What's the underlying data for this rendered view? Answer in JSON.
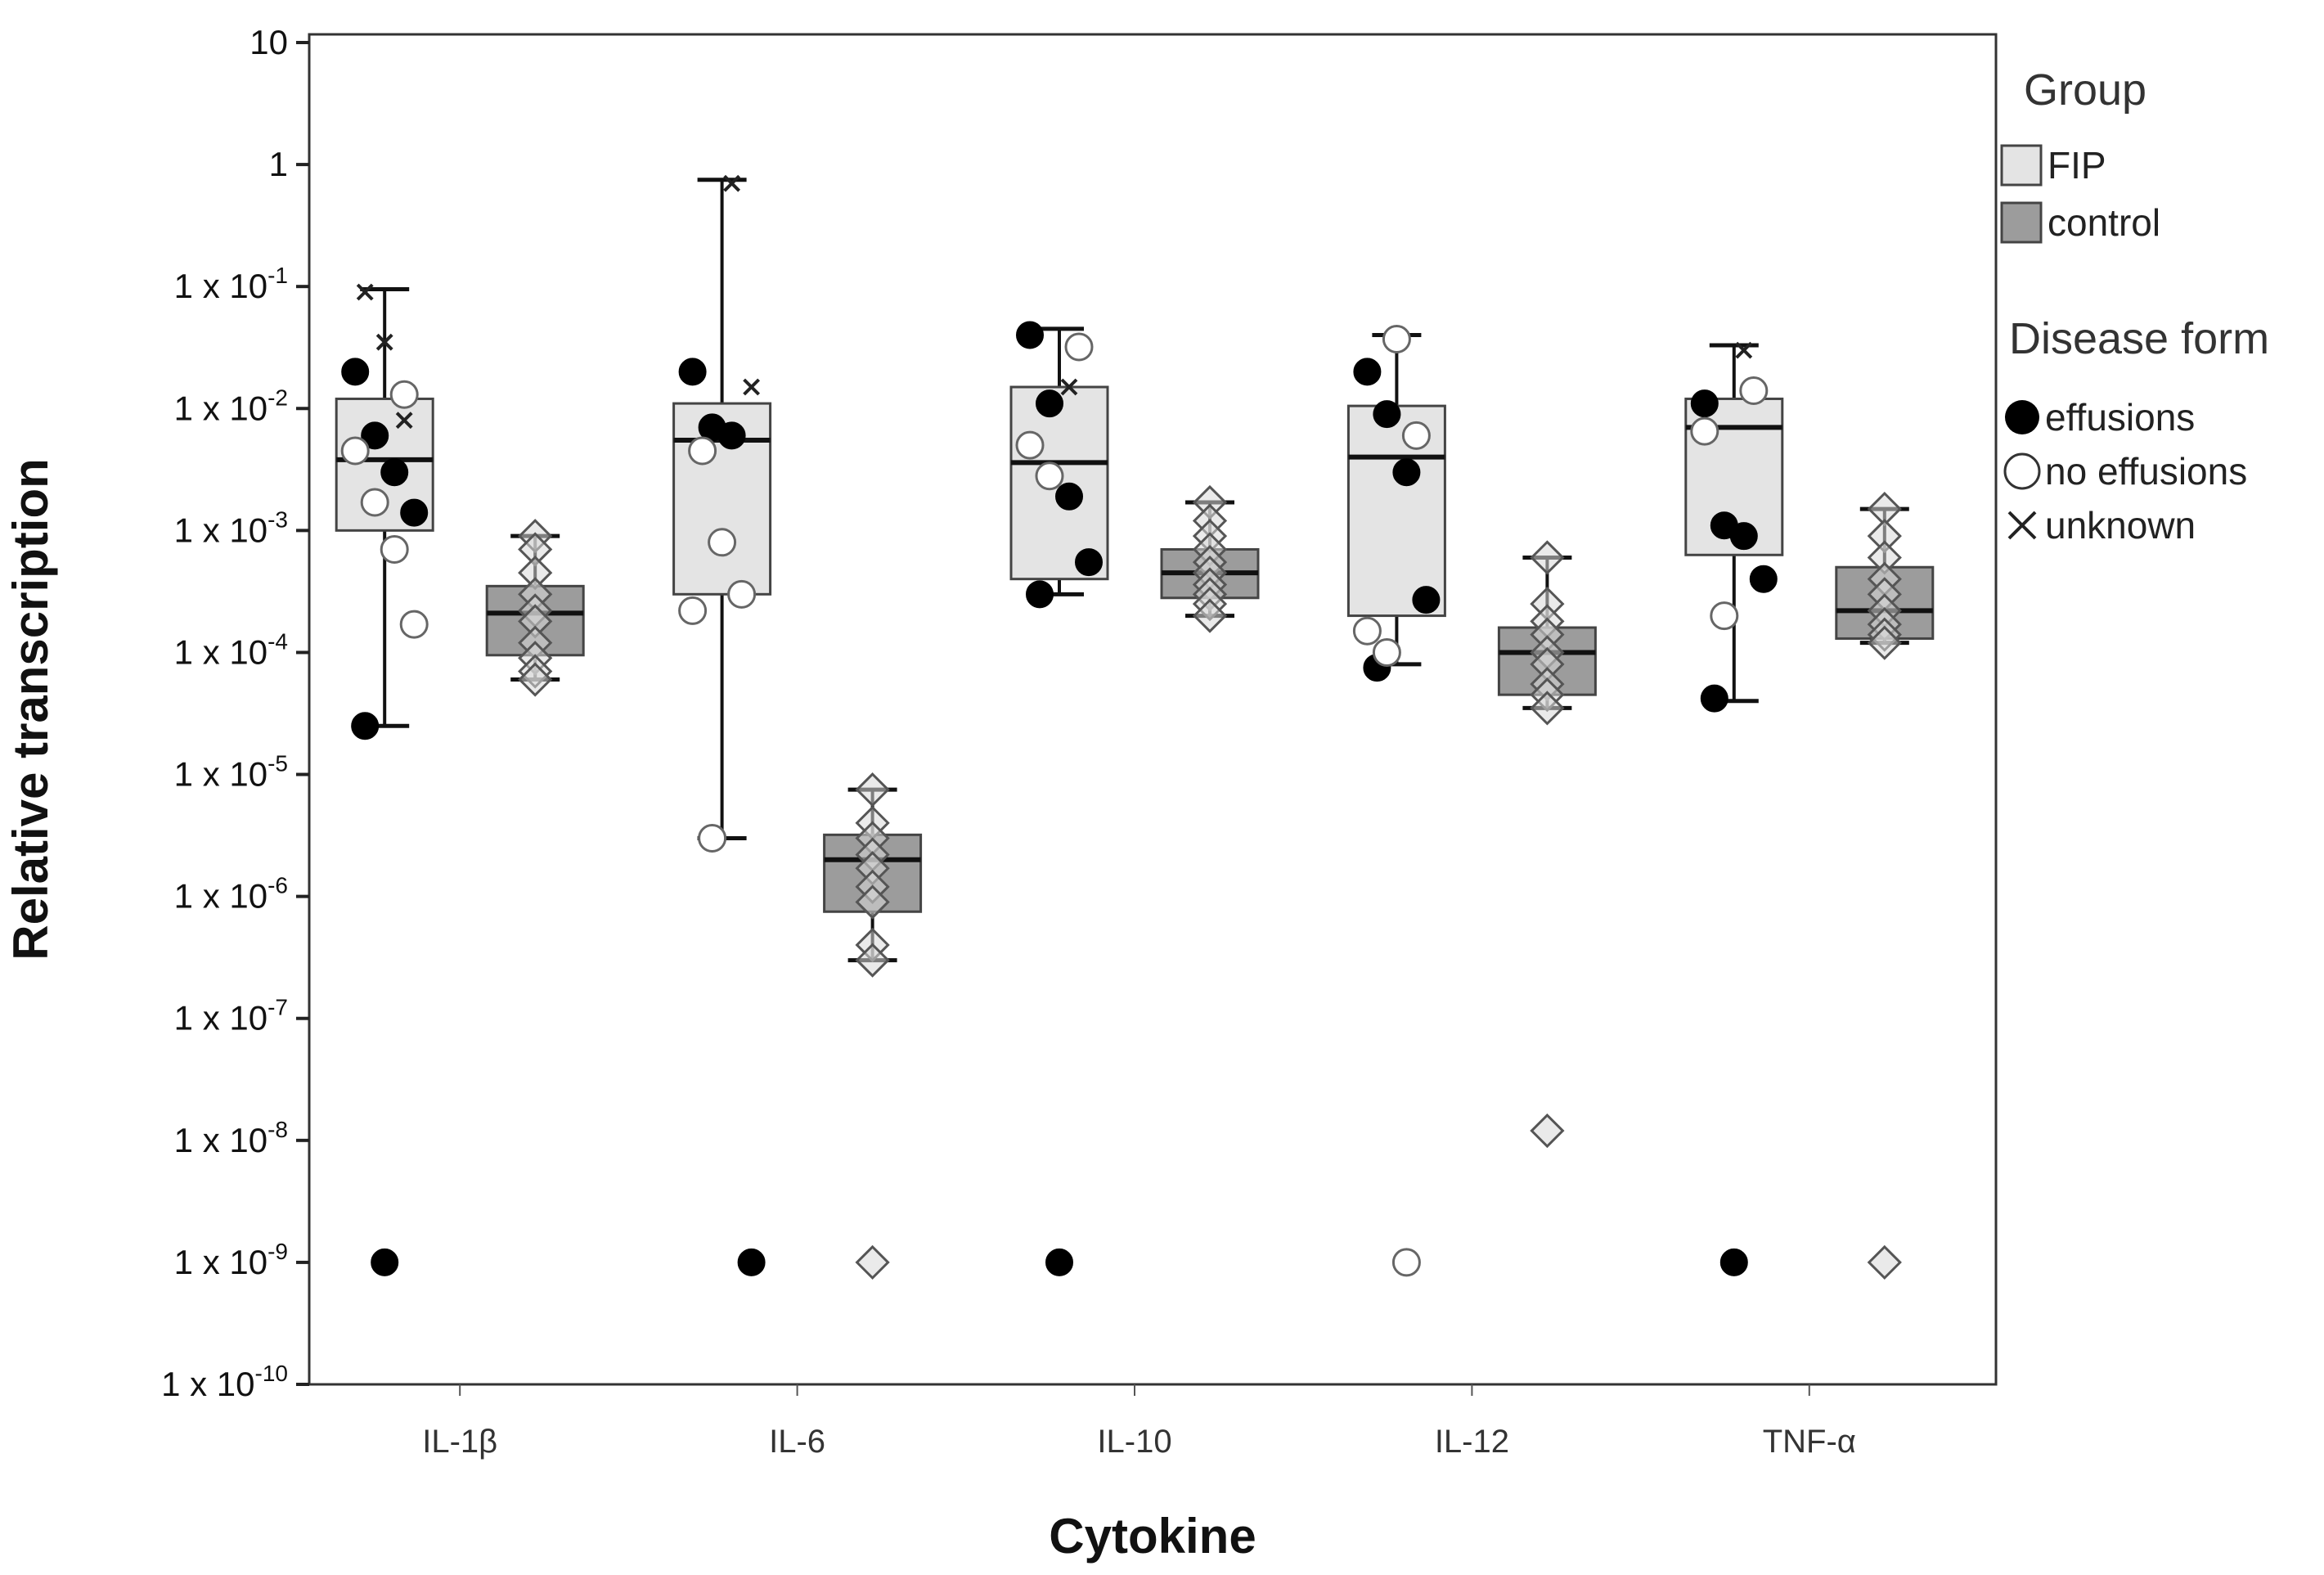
{
  "chart_data": {
    "type": "box",
    "xlabel": "Cytokine",
    "ylabel": "Relative transcription",
    "yscale": "log",
    "ylim": [
      1e-10,
      10
    ],
    "grid": false,
    "legend_placement": "right",
    "y_ticks": [
      {
        "value": 10,
        "base": "10",
        "exp": ""
      },
      {
        "value": 1,
        "base": "1",
        "exp": ""
      },
      {
        "value": 0.1,
        "base": "1 x 10",
        "exp": "-1"
      },
      {
        "value": 0.01,
        "base": "1 x 10",
        "exp": "-2"
      },
      {
        "value": 0.001,
        "base": "1 x 10",
        "exp": "-3"
      },
      {
        "value": 0.0001,
        "base": "1 x 10",
        "exp": "-4"
      },
      {
        "value": 1e-05,
        "base": "1 x 10",
        "exp": "-5"
      },
      {
        "value": 1e-06,
        "base": "1 x 10",
        "exp": "-6"
      },
      {
        "value": 1e-07,
        "base": "1 x 10",
        "exp": "-7"
      },
      {
        "value": 1e-08,
        "base": "1 x 10",
        "exp": "-8"
      },
      {
        "value": 1e-09,
        "base": "1 x 10",
        "exp": "-9"
      },
      {
        "value": 1e-10,
        "base": "1 x 10",
        "exp": "-10"
      }
    ],
    "categories": [
      "IL-1β",
      "IL-6",
      "IL-10",
      "IL-12",
      "TNF-α"
    ],
    "legend": {
      "group_title": "Group",
      "groups": [
        {
          "name": "FIP",
          "color": "#e4e4e4"
        },
        {
          "name": "control",
          "color": "#9c9c9c"
        }
      ],
      "form_title": "Disease form",
      "forms": [
        {
          "name": "effusions",
          "marker": "filled-circle"
        },
        {
          "name": "no effusions",
          "marker": "open-circle"
        },
        {
          "name": "unknown",
          "marker": "cross"
        }
      ]
    },
    "series": [
      {
        "name": "FIP",
        "boxes": [
          {
            "q1": 0.001,
            "median": 0.0038,
            "q3": 0.012,
            "whisker_low": 2.5e-05,
            "whisker_high": 0.095
          },
          {
            "q1": 0.0003,
            "median": 0.0055,
            "q3": 0.011,
            "whisker_low": 3e-06,
            "whisker_high": 0.75
          },
          {
            "q1": 0.0004,
            "median": 0.0036,
            "q3": 0.015,
            "whisker_low": 0.0003,
            "whisker_high": 0.045
          },
          {
            "q1": 0.0002,
            "median": 0.004,
            "q3": 0.0105,
            "whisker_low": 8e-05,
            "whisker_high": 0.04
          },
          {
            "q1": 0.00063,
            "median": 0.007,
            "q3": 0.012,
            "whisker_low": 4e-05,
            "whisker_high": 0.033
          }
        ],
        "points": [
          [
            {
              "y": 0.02,
              "form": "effusions"
            },
            {
              "y": 0.006,
              "form": "effusions"
            },
            {
              "y": 0.003,
              "form": "effusions"
            },
            {
              "y": 0.0014,
              "form": "effusions"
            },
            {
              "y": 2.5e-05,
              "form": "effusions"
            },
            {
              "y": 1e-09,
              "form": "effusions"
            },
            {
              "y": 0.013,
              "form": "no effusions"
            },
            {
              "y": 0.0045,
              "form": "no effusions"
            },
            {
              "y": 0.0017,
              "form": "no effusions"
            },
            {
              "y": 0.0007,
              "form": "no effusions"
            },
            {
              "y": 0.00017,
              "form": "no effusions"
            },
            {
              "y": 0.09,
              "form": "unknown"
            },
            {
              "y": 0.035,
              "form": "unknown"
            },
            {
              "y": 0.008,
              "form": "unknown"
            }
          ],
          [
            {
              "y": 0.02,
              "form": "effusions"
            },
            {
              "y": 0.007,
              "form": "effusions"
            },
            {
              "y": 0.006,
              "form": "effusions"
            },
            {
              "y": 1e-09,
              "form": "effusions"
            },
            {
              "y": 0.0045,
              "form": "no effusions"
            },
            {
              "y": 0.0008,
              "form": "no effusions"
            },
            {
              "y": 0.0003,
              "form": "no effusions"
            },
            {
              "y": 0.00022,
              "form": "no effusions"
            },
            {
              "y": 3e-06,
              "form": "no effusions"
            },
            {
              "y": 0.7,
              "form": "unknown"
            },
            {
              "y": 0.015,
              "form": "unknown"
            }
          ],
          [
            {
              "y": 0.04,
              "form": "effusions"
            },
            {
              "y": 0.011,
              "form": "effusions"
            },
            {
              "y": 0.0019,
              "form": "effusions"
            },
            {
              "y": 0.00055,
              "form": "effusions"
            },
            {
              "y": 0.0003,
              "form": "effusions"
            },
            {
              "y": 1e-09,
              "form": "effusions"
            },
            {
              "y": 0.032,
              "form": "no effusions"
            },
            {
              "y": 0.005,
              "form": "no effusions"
            },
            {
              "y": 0.0028,
              "form": "no effusions"
            },
            {
              "y": 0.015,
              "form": "unknown"
            }
          ],
          [
            {
              "y": 0.02,
              "form": "effusions"
            },
            {
              "y": 0.009,
              "form": "effusions"
            },
            {
              "y": 0.003,
              "form": "effusions"
            },
            {
              "y": 0.00027,
              "form": "effusions"
            },
            {
              "y": 7.5e-05,
              "form": "effusions"
            },
            {
              "y": 0.037,
              "form": "no effusions"
            },
            {
              "y": 0.006,
              "form": "no effusions"
            },
            {
              "y": 0.00015,
              "form": "no effusions"
            },
            {
              "y": 0.0001,
              "form": "no effusions"
            },
            {
              "y": 1e-09,
              "form": "no effusions"
            }
          ],
          [
            {
              "y": 0.011,
              "form": "effusions"
            },
            {
              "y": 0.0011,
              "form": "effusions"
            },
            {
              "y": 0.0009,
              "form": "effusions"
            },
            {
              "y": 0.0004,
              "form": "effusions"
            },
            {
              "y": 4.2e-05,
              "form": "effusions"
            },
            {
              "y": 1e-09,
              "form": "effusions"
            },
            {
              "y": 0.014,
              "form": "no effusions"
            },
            {
              "y": 0.0065,
              "form": "no effusions"
            },
            {
              "y": 0.0002,
              "form": "no effusions"
            },
            {
              "y": 0.03,
              "form": "unknown"
            }
          ]
        ]
      },
      {
        "name": "control",
        "boxes": [
          {
            "q1": 9.5e-05,
            "median": 0.00021,
            "q3": 0.00035,
            "whisker_low": 6e-05,
            "whisker_high": 0.0009
          },
          {
            "q1": 7.5e-07,
            "median": 2e-06,
            "q3": 3.2e-06,
            "whisker_low": 3e-07,
            "whisker_high": 7.5e-06
          },
          {
            "q1": 0.00028,
            "median": 0.00045,
            "q3": 0.0007,
            "whisker_low": 0.0002,
            "whisker_high": 0.0017
          },
          {
            "q1": 4.5e-05,
            "median": 0.0001,
            "q3": 0.00016,
            "whisker_low": 3.5e-05,
            "whisker_high": 0.0006
          },
          {
            "q1": 0.00013,
            "median": 0.00022,
            "q3": 0.0005,
            "whisker_low": 0.00012,
            "whisker_high": 0.0015
          }
        ],
        "points": [
          [
            {
              "y": 0.0009,
              "form": "control"
            },
            {
              "y": 0.0007,
              "form": "control"
            },
            {
              "y": 0.00045,
              "form": "control"
            },
            {
              "y": 0.0003,
              "form": "control"
            },
            {
              "y": 0.00022,
              "form": "control"
            },
            {
              "y": 0.00018,
              "form": "control"
            },
            {
              "y": 0.00012,
              "form": "control"
            },
            {
              "y": 9e-05,
              "form": "control"
            },
            {
              "y": 7e-05,
              "form": "control"
            },
            {
              "y": 6e-05,
              "form": "control"
            }
          ],
          [
            {
              "y": 7.5e-06,
              "form": "control"
            },
            {
              "y": 4e-06,
              "form": "control"
            },
            {
              "y": 3e-06,
              "form": "control"
            },
            {
              "y": 2.2e-06,
              "form": "control"
            },
            {
              "y": 1.7e-06,
              "form": "control"
            },
            {
              "y": 1.2e-06,
              "form": "control"
            },
            {
              "y": 9e-07,
              "form": "control"
            },
            {
              "y": 4e-07,
              "form": "control"
            },
            {
              "y": 3e-07,
              "form": "control"
            },
            {
              "y": 1e-09,
              "form": "control"
            }
          ],
          [
            {
              "y": 0.0017,
              "form": "control"
            },
            {
              "y": 0.0012,
              "form": "control"
            },
            {
              "y": 0.0009,
              "form": "control"
            },
            {
              "y": 0.0007,
              "form": "control"
            },
            {
              "y": 0.00055,
              "form": "control"
            },
            {
              "y": 0.00045,
              "form": "control"
            },
            {
              "y": 0.00036,
              "form": "control"
            },
            {
              "y": 0.0003,
              "form": "control"
            },
            {
              "y": 0.00025,
              "form": "control"
            },
            {
              "y": 0.0002,
              "form": "control"
            }
          ],
          [
            {
              "y": 0.0006,
              "form": "control"
            },
            {
              "y": 0.00025,
              "form": "control"
            },
            {
              "y": 0.00018,
              "form": "control"
            },
            {
              "y": 0.00014,
              "form": "control"
            },
            {
              "y": 0.0001,
              "form": "control"
            },
            {
              "y": 8e-05,
              "form": "control"
            },
            {
              "y": 5.5e-05,
              "form": "control"
            },
            {
              "y": 4.5e-05,
              "form": "control"
            },
            {
              "y": 3.5e-05,
              "form": "control"
            },
            {
              "y": 1.2e-08,
              "form": "control"
            }
          ],
          [
            {
              "y": 0.0015,
              "form": "control"
            },
            {
              "y": 0.0009,
              "form": "control"
            },
            {
              "y": 0.0006,
              "form": "control"
            },
            {
              "y": 0.0004,
              "form": "control"
            },
            {
              "y": 0.0003,
              "form": "control"
            },
            {
              "y": 0.00022,
              "form": "control"
            },
            {
              "y": 0.00017,
              "form": "control"
            },
            {
              "y": 0.00014,
              "form": "control"
            },
            {
              "y": 0.00012,
              "form": "control"
            },
            {
              "y": 1e-09,
              "form": "control"
            }
          ]
        ]
      }
    ]
  }
}
